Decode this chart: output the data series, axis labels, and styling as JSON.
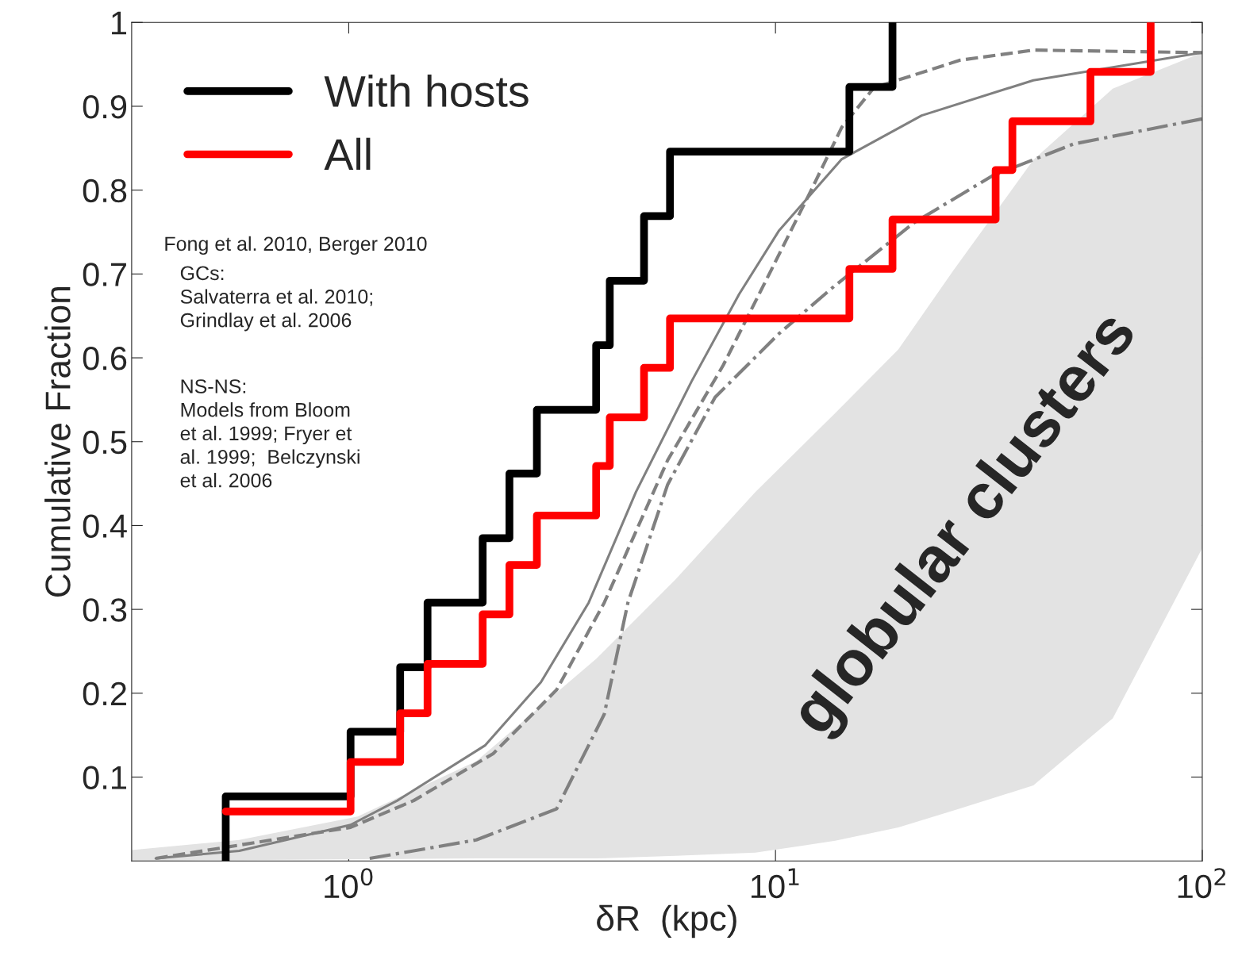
{
  "chart_data": {
    "type": "step",
    "xlabel": "δR  (kpc)",
    "ylabel": "Cumulative Fraction",
    "log": "x",
    "xlim": [
      0.31,
      100
    ],
    "ylim": [
      0,
      1
    ],
    "xticks": [
      {
        "value": 1,
        "label": "10$^{0}$"
      },
      {
        "value": 10,
        "label": "10$^{1}$"
      },
      {
        "value": 100,
        "label": "10$^{2}$"
      }
    ],
    "yticks": [
      0.1,
      0.2,
      0.3,
      0.4,
      0.5,
      0.6,
      0.7,
      0.8,
      0.9,
      1
    ],
    "legend": "top left",
    "grid": false,
    "annotations": [
      "Fong et al. 2010, Berger 2010",
      "GCs:\nSalvaterra et al. 2010;\nGrindlay et al. 2006",
      "NS-NS:\nModels from Bloom\net al. 1999; Fryer et\nal. 1999;  Belczynski\net al. 2006",
      "globular clusters"
    ],
    "series": [
      {
        "type": "area",
        "color": "#e3e3e3",
        "x": [
          0.31,
          0.554,
          1.05,
          1.99,
          3.8,
          5.84,
          8.97,
          13.8,
          19.4,
          26.1,
          40.2,
          61.7,
          100
        ],
        "values": [
          null,
          null,
          null,
          null,
          null,
          null,
          null,
          null,
          null,
          null,
          null,
          null,
          null
        ],
        "upper": [
          0.013,
          0.025,
          0.053,
          0.119,
          0.241,
          0.336,
          0.44,
          0.534,
          0.61,
          0.704,
          0.836,
          0.921,
          0.964
        ],
        "lower": [
          0,
          0.001,
          0.002,
          0.003,
          0.003,
          0.006,
          0.01,
          0.024,
          0.04,
          0.06,
          0.09,
          0.17,
          0.373
        ]
      },
      {
        "type": "line",
        "color": "#808080",
        "line_style": "solid",
        "x": [
          0.353,
          0.554,
          1.01,
          1.3,
          2.09,
          2.82,
          3.65,
          4.71,
          6.36,
          8.22,
          10.2,
          14.3,
          22.0,
          40.2,
          100
        ],
        "values": [
          0.003,
          0.012,
          0.043,
          0.072,
          0.138,
          0.213,
          0.308,
          0.44,
          0.572,
          0.676,
          0.752,
          0.837,
          0.889,
          0.931,
          0.964
        ]
      },
      {
        "type": "line",
        "color": "#808080",
        "line_style": "dashed",
        "x": [
          0.353,
          1.01,
          1.42,
          2.18,
          3.07,
          3.97,
          5.59,
          7.54,
          9.78,
          12.1,
          14.3,
          17.0,
          27.1,
          40.2,
          100
        ],
        "values": [
          0.003,
          0.04,
          0.072,
          0.128,
          0.204,
          0.308,
          0.478,
          0.591,
          0.705,
          0.799,
          0.875,
          0.922,
          0.955,
          0.967,
          0.964
        ]
      },
      {
        "type": "line",
        "color": "#808080",
        "line_style": "dashdot",
        "x": [
          1.12,
          1.99,
          3.07,
          3.97,
          4.51,
          5.59,
          7.22,
          10.2,
          13.7,
          21.1,
          32.2,
          49.9,
          100
        ],
        "values": [
          0.003,
          0.025,
          0.062,
          0.175,
          0.308,
          0.449,
          0.553,
          0.629,
          0.685,
          0.761,
          0.817,
          0.855,
          0.885
        ]
      },
      {
        "name": "With hosts",
        "color": "#000000",
        "x": [
          0.515,
          0.515,
          1.01,
          1.32,
          1.53,
          2.06,
          2.38,
          2.76,
          3.8,
          4.09,
          4.92,
          5.66,
          14.9,
          18.8
        ],
        "values": [
          0,
          0.077,
          0.154,
          0.231,
          0.308,
          0.385,
          0.462,
          0.538,
          0.615,
          0.692,
          0.769,
          0.846,
          0.923,
          1.0
        ]
      },
      {
        "name": "All",
        "color": "#ff0000",
        "x": [
          0.515,
          1.01,
          1.32,
          1.53,
          2.06,
          2.38,
          2.76,
          3.8,
          4.09,
          4.92,
          5.66,
          14.9,
          18.8,
          32.8,
          35.9,
          54.7,
          75.7
        ],
        "values": [
          0.059,
          0.118,
          0.176,
          0.235,
          0.294,
          0.353,
          0.412,
          0.471,
          0.529,
          0.588,
          0.647,
          0.706,
          0.765,
          0.824,
          0.882,
          0.941,
          1.0
        ]
      }
    ]
  }
}
